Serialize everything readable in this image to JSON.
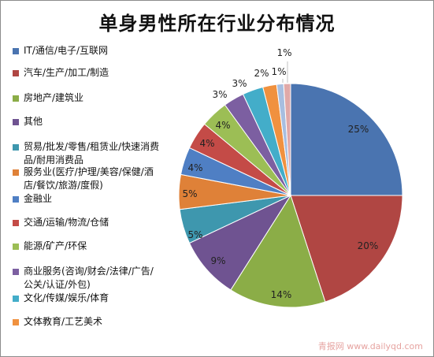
{
  "chart_data": {
    "type": "pie",
    "title": "单身男性所在行业分布情况",
    "legend_position": "left",
    "slices": [
      {
        "label": "IT/通信/电子/互联网",
        "value": 25,
        "display": "25%",
        "color": "#4a74b0"
      },
      {
        "label": "汽车/生产/加工/制造",
        "value": 20,
        "display": "20%",
        "color": "#b04643"
      },
      {
        "label": "房地产/建筑业",
        "value": 14,
        "display": "14%",
        "color": "#8bad47"
      },
      {
        "label": "其他",
        "value": 9,
        "display": "9%",
        "color": "#6f5391"
      },
      {
        "label": "贸易/批发/零售/租赁业/快速消费品/耐用消费品",
        "value": 5,
        "display": "5%",
        "color": "#3e97ae"
      },
      {
        "label": "服务业(医疗/护理/美容/保健/酒店/餐饮/旅游/度假)",
        "value": 5,
        "display": "5%",
        "color": "#df8138"
      },
      {
        "label": "金融业",
        "value": 4,
        "display": "4%",
        "color": "#4f7fc4"
      },
      {
        "label": "交通/运输/物流/仓储",
        "value": 4,
        "display": "4%",
        "color": "#c44b47"
      },
      {
        "label": "能源/矿产/环保",
        "value": 4,
        "display": "4%",
        "color": "#9cbe55"
      },
      {
        "label": "商业服务(咨询/财会/法律/广告/公关/认证/外包)",
        "value": 3,
        "display": "3%",
        "color": "#7c5fa1"
      },
      {
        "label": "文化/传媒/娱乐/体育",
        "value": 3,
        "display": "3%",
        "color": "#43adc9"
      },
      {
        "label": "文体教育/工艺美术",
        "value": 2,
        "display": "2%",
        "color": "#f0913f"
      },
      {
        "label": "",
        "value": 1,
        "display": "1%",
        "color": "#a7bee0"
      },
      {
        "label": "",
        "value": 1,
        "display": "1%",
        "color": "#e0a9a8"
      }
    ]
  },
  "watermark": "青报网 www.dailyqd.com"
}
